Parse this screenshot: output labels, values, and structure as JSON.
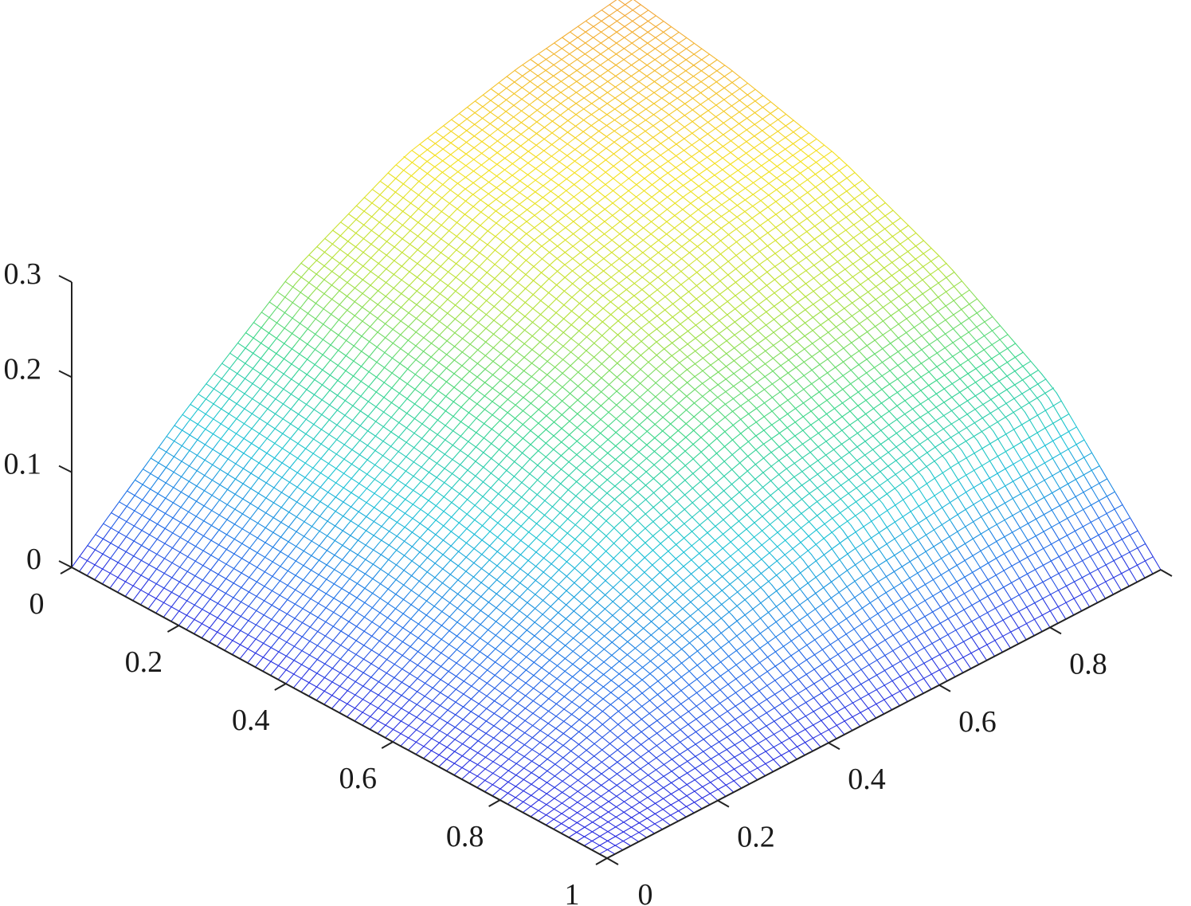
{
  "chart_data": {
    "type": "surface-mesh",
    "title": "",
    "xlabel": "",
    "ylabel": "",
    "zlabel": "",
    "x_axis": {
      "range": [
        0,
        1
      ],
      "ticks": [
        0,
        0.2,
        0.4,
        0.6,
        0.8,
        1
      ],
      "tick_labels": [
        "0",
        "0.2",
        "0.4",
        "0.6",
        "0.8",
        "1"
      ]
    },
    "y_axis": {
      "range": [
        0,
        1
      ],
      "ticks": [
        0,
        0.2,
        0.4,
        0.6,
        0.8,
        1
      ],
      "tick_labels": [
        "0",
        "0.2",
        "0.4",
        "0.6",
        "0.8",
        "1"
      ]
    },
    "z_axis": {
      "range": [
        0,
        0.3
      ],
      "ticks": [
        0,
        0.1,
        0.2,
        0.3
      ],
      "tick_labels": [
        "0",
        "0.1",
        "0.2",
        "0.3"
      ]
    },
    "surface": {
      "grid_x": [
        0,
        0.2,
        0.4,
        0.6,
        0.8,
        1
      ],
      "grid_y": [
        0,
        0.2,
        0.4,
        0.6,
        0.8,
        1
      ],
      "z_rows_by_y": [
        [
          0.0,
          0.0,
          0.0,
          0.0,
          0.0,
          0.0
        ],
        [
          0.1,
          0.09,
          0.08,
          0.06,
          0.04,
          0.0
        ],
        [
          0.19,
          0.17,
          0.15,
          0.12,
          0.07,
          0.0
        ],
        [
          0.25,
          0.23,
          0.2,
          0.16,
          0.1,
          0.0
        ],
        [
          0.28,
          0.26,
          0.23,
          0.18,
          0.12,
          0.0
        ],
        [
          0.3,
          0.28,
          0.25,
          0.2,
          0.13,
          0.0
        ]
      ]
    },
    "colormap": [
      "#2a2ae0",
      "#1f74e8",
      "#1cc3d6",
      "#3ad68c",
      "#b6e23a",
      "#f5e21e",
      "#f2a23a"
    ],
    "grid": false,
    "legend": "none"
  }
}
